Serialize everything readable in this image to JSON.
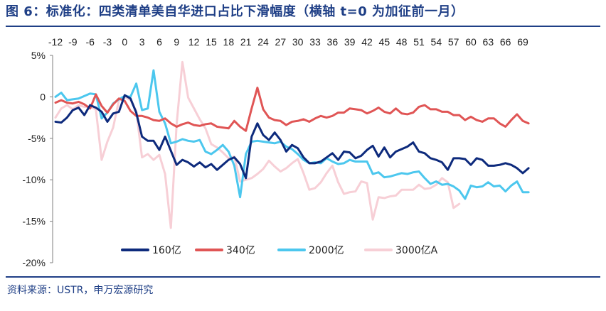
{
  "header": {
    "title": "图 6：标准化：四类清单美自华进口占比下滑幅度（横轴 t=0 为加征前一月）"
  },
  "footer": {
    "source": "资料来源：USTR，申万宏源研究"
  },
  "chart_data": {
    "type": "line",
    "title": "",
    "xlabel": "",
    "ylabel": "",
    "xlim": [
      -12,
      69
    ],
    "ylim": [
      -20,
      5
    ],
    "x_ticks": [
      -12,
      -9,
      -6,
      -3,
      0,
      3,
      6,
      9,
      12,
      15,
      18,
      21,
      24,
      27,
      30,
      33,
      36,
      39,
      42,
      45,
      48,
      51,
      54,
      57,
      60,
      63,
      66,
      69
    ],
    "y_ticks": [
      5,
      0,
      -5,
      -10,
      -15,
      -20
    ],
    "y_tick_labels": [
      "5%",
      "0",
      "-5%",
      "-10%",
      "-15%",
      "-20%"
    ],
    "grid": false,
    "legend_position": "bottom",
    "series": [
      {
        "name": "160亿",
        "color": "#0d2a7c",
        "x_start": -12,
        "values": [
          -3.0,
          -3.1,
          -2.5,
          -1.6,
          -1.3,
          -2.2,
          -1.0,
          -1.3,
          -1.8,
          -3.0,
          -2.0,
          -1.8,
          0.2,
          -0.2,
          -1.9,
          -4.8,
          -5.3,
          -5.3,
          -6.4,
          -4.8,
          -6.5,
          -8.2,
          -7.6,
          -7.9,
          -8.4,
          -7.9,
          -8.5,
          -8.1,
          -8.8,
          -8.2,
          -7.6,
          -7.3,
          -8.1,
          -9.8,
          -4.8,
          -3.2,
          -4.6,
          -5.2,
          -4.3,
          -5.2,
          -6.6,
          -5.8,
          -6.2,
          -7.3,
          -8.0,
          -8.0,
          -7.8,
          -7.3,
          -6.8,
          -7.6,
          -6.6,
          -6.7,
          -7.4,
          -7.1,
          -6.4,
          -5.9,
          -7.2,
          -6.1,
          -7.3,
          -6.6,
          -6.3,
          -6.0,
          -5.5,
          -6.6,
          -6.8,
          -7.4,
          -7.6,
          -7.9,
          -8.8,
          -7.4,
          -7.4,
          -7.5,
          -8.2,
          -7.4,
          -7.6,
          -8.3,
          -8.3,
          -8.2,
          -8.0,
          -8.2,
          -8.6,
          -9.2,
          -8.6
        ]
      },
      {
        "name": "340亿",
        "color": "#e05555",
        "x_start": -12,
        "values": [
          -0.7,
          -0.4,
          -0.7,
          -0.8,
          -0.6,
          -0.9,
          -1.4,
          0.3,
          -1.1,
          -1.9,
          -0.9,
          -0.2,
          -0.5,
          -1.7,
          -2.3,
          -2.3,
          -2.5,
          -2.8,
          -2.9,
          -2.6,
          -3.2,
          -3.6,
          -3.3,
          -3.1,
          -3.4,
          -3.5,
          -3.3,
          -3.2,
          -3.6,
          -3.7,
          -3.8,
          -2.9,
          -3.6,
          -4.1,
          -1.4,
          1.1,
          -1.5,
          -2.5,
          -2.8,
          -2.9,
          -3.4,
          -3.0,
          -2.9,
          -2.7,
          -3.0,
          -2.6,
          -2.3,
          -2.5,
          -2.3,
          -1.9,
          -1.9,
          -1.4,
          -1.5,
          -1.6,
          -2.0,
          -1.7,
          -1.3,
          -1.8,
          -2.0,
          -1.4,
          -2.0,
          -2.1,
          -1.9,
          -1.2,
          -1.0,
          -1.5,
          -1.5,
          -1.8,
          -1.8,
          -2.2,
          -2.2,
          -2.8,
          -2.4,
          -2.8,
          -3.0,
          -2.6,
          -2.6,
          -3.2,
          -3.6,
          -2.8,
          -2.1,
          -2.9,
          -3.2
        ]
      },
      {
        "name": "2000亿",
        "color": "#4cc7ee",
        "x_start": -12,
        "values": [
          0.0,
          0.5,
          -0.4,
          -0.3,
          -0.2,
          0.1,
          0.4,
          0.3,
          -2.6,
          -1.9,
          -0.8,
          -0.3,
          0.1,
          0.0,
          1.6,
          -1.6,
          -1.4,
          3.2,
          -1.8,
          -3.2,
          -5.6,
          -5.4,
          -5.1,
          -5.3,
          -5.4,
          -5.2,
          -6.6,
          -6.9,
          -6.4,
          -5.8,
          -6.6,
          -8.3,
          -12.1,
          -6.9,
          -5.4,
          -5.3,
          -5.4,
          -5.5,
          -5.6,
          -5.4,
          -6.0,
          -6.3,
          -6.9,
          -7.6,
          -8.0,
          -7.9,
          -8.0,
          -7.4,
          -7.8,
          -8.1,
          -8.0,
          -7.6,
          -7.8,
          -7.8,
          -7.8,
          -9.3,
          -9.1,
          -9.7,
          -9.6,
          -9.4,
          -9.2,
          -9.3,
          -9.1,
          -9.0,
          -9.8,
          -10.5,
          -10.2,
          -10.6,
          -10.5,
          -10.8,
          -11.3,
          -12.3,
          -10.7,
          -10.9,
          -10.8,
          -10.3,
          -10.8,
          -10.7,
          -11.4,
          -10.7,
          -10.2,
          -11.5,
          -11.5
        ]
      },
      {
        "name": "3000亿A",
        "color": "#f7cfd6",
        "x_start": -12,
        "values": [
          -2.5,
          -1.4,
          -1.0,
          -1.5,
          -1.0,
          -1.2,
          -1.2,
          -1.5,
          -7.6,
          -5.4,
          -3.7,
          -0.4,
          0.0,
          -0.4,
          -1.7,
          -7.3,
          -6.9,
          -7.6,
          -7.0,
          -9.3,
          -15.8,
          -3.3,
          4.2,
          -0.1,
          -1.4,
          -2.7,
          -3.8,
          -5.7,
          -6.1,
          -6.7,
          -7.4,
          -7.2,
          -10.2,
          -10.0,
          -9.8,
          -9.3,
          -8.7,
          -7.7,
          -8.4,
          -9.0,
          -8.6,
          -8.0,
          -7.5,
          -9.2,
          -11.2,
          -11.0,
          -10.3,
          -9.2,
          -8.3,
          -10.3,
          -11.7,
          -11.5,
          -11.4,
          -10.2,
          -10.4,
          -14.8,
          -12.1,
          -12.2,
          -12.0,
          -11.9,
          -11.2,
          -11.2,
          -11.2,
          -10.6,
          -11.1,
          -11.0,
          -10.6,
          -9.8,
          -10.3,
          -13.4,
          -12.9
        ]
      }
    ]
  }
}
